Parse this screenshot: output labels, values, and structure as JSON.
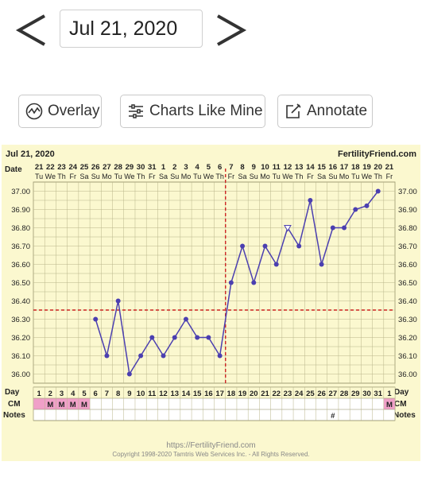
{
  "nav": {
    "date": "Jul 21, 2020"
  },
  "buttons": {
    "overlay": "Overlay",
    "charts_like_mine": "Charts Like Mine",
    "annotate": "Annotate"
  },
  "chart_header": {
    "date": "Jul 21, 2020",
    "brand": "FertilityFriend.com"
  },
  "row_labels": {
    "date": "Date",
    "day": "Day",
    "cm": "CM",
    "notes": "Notes"
  },
  "footer": {
    "url": "https://FertilityFriend.com",
    "copyright": "Copyright 1998-2020 Tamtris Web Services Inc. - All Rights Reserved."
  },
  "colors": {
    "background": "#fbf8cf",
    "line": "#4b3fb0",
    "coverline": "#cc2222",
    "cm_highlight": "#f0a0c8",
    "text": "#222222"
  },
  "icons": {
    "prev": "chevron-left-icon",
    "next": "chevron-right-icon",
    "overlay": "wave-circle-icon",
    "charts_like_mine": "sliders-icon",
    "annotate": "pencil-square-icon"
  },
  "chart_data": {
    "type": "line",
    "dates": [
      "21",
      "22",
      "23",
      "24",
      "25",
      "26",
      "27",
      "28",
      "29",
      "30",
      "31",
      "1",
      "2",
      "3",
      "4",
      "5",
      "6",
      "7",
      "8",
      "9",
      "10",
      "11",
      "12",
      "13",
      "14",
      "15",
      "16",
      "17",
      "18",
      "19",
      "20",
      "21"
    ],
    "weekdays": [
      "Tu",
      "We",
      "Th",
      "Fr",
      "Sa",
      "Su",
      "Mo",
      "Tu",
      "We",
      "Th",
      "Fr",
      "Sa",
      "Su",
      "Mo",
      "Tu",
      "We",
      "Th",
      "Fr",
      "Sa",
      "Su",
      "Mo",
      "Tu",
      "We",
      "Th",
      "Fr",
      "Sa",
      "Su",
      "Mo",
      "Tu",
      "We",
      "Th",
      "Fr"
    ],
    "cycle_days": [
      1,
      2,
      3,
      4,
      5,
      6,
      7,
      8,
      9,
      10,
      11,
      12,
      13,
      14,
      15,
      16,
      17,
      18,
      19,
      20,
      21,
      22,
      23,
      24,
      25,
      26,
      27,
      28,
      29,
      30,
      31,
      1
    ],
    "temperatures": [
      null,
      null,
      null,
      null,
      null,
      36.3,
      36.1,
      36.4,
      36.0,
      36.1,
      36.2,
      36.1,
      36.2,
      36.3,
      36.2,
      36.2,
      36.1,
      36.5,
      36.7,
      36.5,
      36.7,
      36.6,
      36.8,
      36.7,
      36.95,
      36.6,
      36.8,
      36.8,
      36.9,
      36.92,
      37.0,
      null
    ],
    "open_markers": [
      22
    ],
    "y_ticks": [
      "37.00",
      "36.90",
      "36.80",
      "36.70",
      "36.60",
      "36.50",
      "36.40",
      "36.30",
      "36.20",
      "36.10",
      "36.00"
    ],
    "ylim": [
      35.95,
      37.05
    ],
    "coverline": 36.35,
    "ovulation_line_after_index": 16,
    "cm": [
      "",
      "M",
      "M",
      "M",
      "M",
      "",
      "",
      "",
      "",
      "",
      "",
      "",
      "",
      "",
      "",
      "",
      "",
      "",
      "",
      "",
      "",
      "",
      "",
      "",
      "",
      "",
      "",
      "",
      "",
      "",
      "",
      "M"
    ],
    "notes": [
      "",
      "",
      "",
      "",
      "",
      "",
      "",
      "",
      "",
      "",
      "",
      "",
      "",
      "",
      "",
      "",
      "",
      "",
      "",
      "",
      "",
      "",
      "",
      "",
      "",
      "",
      "#",
      "",
      "",
      "",
      "",
      ""
    ]
  }
}
